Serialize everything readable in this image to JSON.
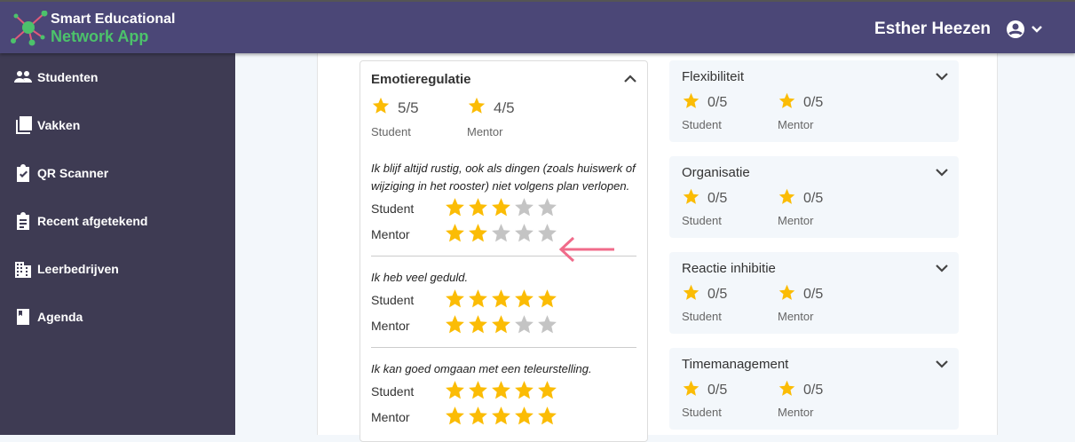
{
  "app": {
    "title_line1": "Smart Educational",
    "title_line2": "Network App",
    "user_name": "Esther Heezen"
  },
  "sidebar": {
    "items": [
      {
        "label": "Studenten",
        "icon": "people-icon"
      },
      {
        "label": "Vakken",
        "icon": "library-icon"
      },
      {
        "label": "QR Scanner",
        "icon": "clipboard-check-icon"
      },
      {
        "label": "Recent afgetekend",
        "icon": "clipboard-list-icon"
      },
      {
        "label": "Leerbedrijven",
        "icon": "building-icon"
      },
      {
        "label": "Agenda",
        "icon": "book-icon"
      }
    ]
  },
  "colors": {
    "star_filled": "#fbbc05",
    "star_empty": "#c4c4c4",
    "arrow": "#f06b8a",
    "header": "#4b4777",
    "sidebar": "#3e3b53"
  },
  "main": {
    "open_card": {
      "title": "Emotieregulatie",
      "student_score": "5/5",
      "mentor_score": "4/5",
      "student_label": "Student",
      "mentor_label": "Mentor",
      "questions": [
        {
          "text": "Ik blijf altijd rustig, ook als dingen (zoals huiswerk of wijziging in het rooster) niet volgens plan verlopen.",
          "student": 3,
          "mentor": 2
        },
        {
          "text": "Ik heb veel geduld.",
          "student": 5,
          "mentor": 3
        },
        {
          "text": "Ik kan goed omgaan met een teleurstelling.",
          "student": 5,
          "mentor": 5
        }
      ]
    },
    "cards": [
      {
        "title": "Flexibiliteit",
        "student_score": "0/5",
        "mentor_score": "0/5"
      },
      {
        "title": "Organisatie",
        "student_score": "0/5",
        "mentor_score": "0/5"
      },
      {
        "title": "Reactie inhibitie",
        "student_score": "0/5",
        "mentor_score": "0/5"
      },
      {
        "title": "Timemanagement",
        "student_score": "0/5",
        "mentor_score": "0/5"
      }
    ],
    "student_label": "Student",
    "mentor_label": "Mentor"
  }
}
